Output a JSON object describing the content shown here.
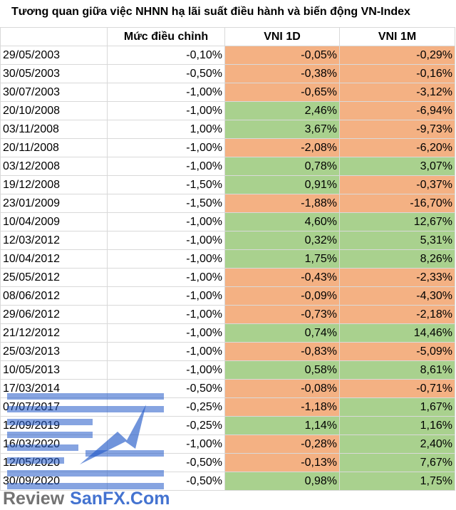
{
  "title": "Tương quan giữa việc NHNN hạ lãi suất điều hành và biến động VN-Index",
  "columns": [
    "",
    "Mức điều chỉnh",
    "VNI 1D",
    "VNI 1M"
  ],
  "rows": [
    {
      "date": "29/05/2003",
      "adj": "-0,10%",
      "d1": "-0,05%",
      "m1": "-0,29%"
    },
    {
      "date": "30/05/2003",
      "adj": "-0,50%",
      "d1": "-0,38%",
      "m1": "-0,16%"
    },
    {
      "date": "30/07/2003",
      "adj": "-1,00%",
      "d1": "-0,65%",
      "m1": "-3,12%"
    },
    {
      "date": "20/10/2008",
      "adj": "-1,00%",
      "d1": "2,46%",
      "m1": "-6,94%"
    },
    {
      "date": "03/11/2008",
      "adj": "1,00%",
      "d1": "3,67%",
      "m1": "-9,73%"
    },
    {
      "date": "20/11/2008",
      "adj": "-1,00%",
      "d1": "-2,08%",
      "m1": "-6,20%"
    },
    {
      "date": "03/12/2008",
      "adj": "-1,00%",
      "d1": "0,78%",
      "m1": "3,07%"
    },
    {
      "date": "19/12/2008",
      "adj": "-1,50%",
      "d1": "0,91%",
      "m1": "-0,37%"
    },
    {
      "date": "23/01/2009",
      "adj": "-1,50%",
      "d1": "-1,88%",
      "m1": "-16,70%"
    },
    {
      "date": "10/04/2009",
      "adj": "-1,00%",
      "d1": "4,60%",
      "m1": "12,67%"
    },
    {
      "date": "12/03/2012",
      "adj": "-1,00%",
      "d1": "0,32%",
      "m1": "5,31%"
    },
    {
      "date": "10/04/2012",
      "adj": "-1,00%",
      "d1": "1,75%",
      "m1": "8,26%"
    },
    {
      "date": "25/05/2012",
      "adj": "-1,00%",
      "d1": "-0,43%",
      "m1": "-2,33%"
    },
    {
      "date": "08/06/2012",
      "adj": "-1,00%",
      "d1": "-0,09%",
      "m1": "-4,30%"
    },
    {
      "date": "29/06/2012",
      "adj": "-1,00%",
      "d1": "-0,73%",
      "m1": "-2,18%"
    },
    {
      "date": "21/12/2012",
      "adj": "-1,00%",
      "d1": "0,74%",
      "m1": "14,46%"
    },
    {
      "date": "25/03/2013",
      "adj": "-1,00%",
      "d1": "-0,83%",
      "m1": "-5,09%"
    },
    {
      "date": "10/05/2013",
      "adj": "-1,00%",
      "d1": "0,58%",
      "m1": "8,61%"
    },
    {
      "date": "17/03/2014",
      "adj": "-0,50%",
      "d1": "-0,08%",
      "m1": "-0,71%"
    },
    {
      "date": "07/07/2017",
      "adj": "-0,25%",
      "d1": "-1,18%",
      "m1": "1,67%"
    },
    {
      "date": "12/09/2019",
      "adj": "-0,25%",
      "d1": "1,14%",
      "m1": "1,16%"
    },
    {
      "date": "16/03/2020",
      "adj": "-1,00%",
      "d1": "-0,28%",
      "m1": "2,40%"
    },
    {
      "date": "12/05/2020",
      "adj": "-0,50%",
      "d1": "-0,13%",
      "m1": "7,67%"
    },
    {
      "date": "30/09/2020",
      "adj": "-0,50%",
      "d1": "0,98%",
      "m1": "1,75%"
    }
  ],
  "colors": {
    "positive": "#a9d18e",
    "negative": "#f4b183",
    "gridline": "#d9d9d9"
  },
  "watermark": {
    "left": "Review",
    "right": "SanFX.Com",
    "icon": "sanfx-logo-icon"
  }
}
